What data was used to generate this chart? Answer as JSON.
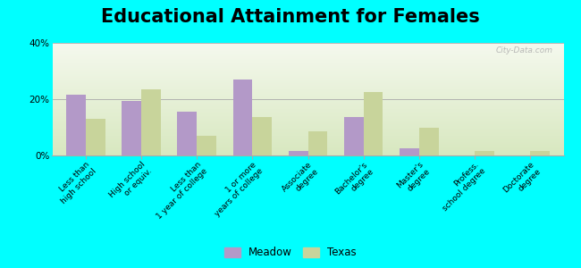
{
  "title": "Educational Attainment for Females",
  "categories": [
    "Less than\nhigh school",
    "High school\nor equiv.",
    "Less than\n1 year of college",
    "1 or more\nyears of college",
    "Associate\ndegree",
    "Bachelor's\ndegree",
    "Master's\ndegree",
    "Profess.\nschool degree",
    "Doctorate\ndegree"
  ],
  "meadow_values": [
    21.5,
    19.5,
    15.5,
    27.0,
    1.5,
    13.5,
    2.5,
    0.0,
    0.0
  ],
  "texas_values": [
    13.0,
    23.5,
    7.0,
    13.5,
    8.5,
    22.5,
    10.0,
    1.5,
    1.5
  ],
  "meadow_color": "#b399c8",
  "texas_color": "#c8d49b",
  "bg_top_color": "#f5f9ee",
  "bg_bottom_color": "#d8e8c0",
  "outer_background": "#00ffff",
  "ylim": [
    0,
    40
  ],
  "yticks": [
    0,
    20,
    40
  ],
  "ytick_labels": [
    "0%",
    "20%",
    "40%"
  ],
  "legend_labels": [
    "Meadow",
    "Texas"
  ],
  "title_fontsize": 15,
  "tick_fontsize": 6.5,
  "watermark": "City-Data.com"
}
